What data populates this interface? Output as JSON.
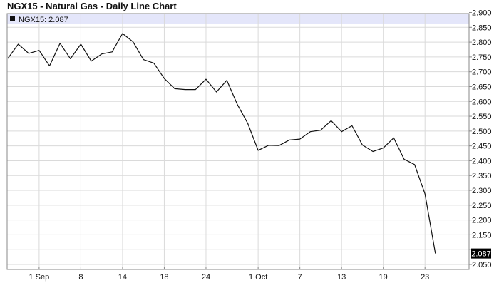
{
  "title": "NGX15 - Natural Gas - Daily Line Chart",
  "legend": {
    "label": "NGX15: 2.087"
  },
  "colors": {
    "line": "#111111",
    "legend_band": "#e4e6fa",
    "grid": "#dadada",
    "frame": "#888888",
    "last_badge_bg": "#000000",
    "last_badge_text": "#ffffff"
  },
  "chart_data": {
    "type": "line",
    "title": "NGX15 - Natural Gas - Daily Line Chart",
    "xlabel": "",
    "ylabel": "",
    "ylim": [
      2.05,
      2.9
    ],
    "y_ticks": [
      "2.900",
      "2.850",
      "2.800",
      "2.750",
      "2.700",
      "2.650",
      "2.600",
      "2.550",
      "2.500",
      "2.450",
      "2.400",
      "2.350",
      "2.300",
      "2.250",
      "2.200",
      "2.150",
      "2.100",
      "2.050"
    ],
    "x_ticks": [
      "1 Sep",
      "8",
      "14",
      "18",
      "24",
      "1 Oct",
      "7",
      "13",
      "19",
      "23"
    ],
    "last_value_label": "2.087",
    "grid": true,
    "legend_position": "top-left",
    "series": [
      {
        "name": "NGX15",
        "values": [
          2.745,
          2.793,
          2.762,
          2.772,
          2.72,
          2.796,
          2.744,
          2.793,
          2.736,
          2.76,
          2.767,
          2.829,
          2.801,
          2.741,
          2.729,
          2.677,
          2.643,
          2.64,
          2.64,
          2.675,
          2.632,
          2.671,
          2.59,
          2.526,
          2.435,
          2.452,
          2.451,
          2.47,
          2.473,
          2.498,
          2.503,
          2.535,
          2.498,
          2.518,
          2.453,
          2.431,
          2.443,
          2.477,
          2.405,
          2.387,
          2.288,
          2.087
        ]
      }
    ]
  }
}
